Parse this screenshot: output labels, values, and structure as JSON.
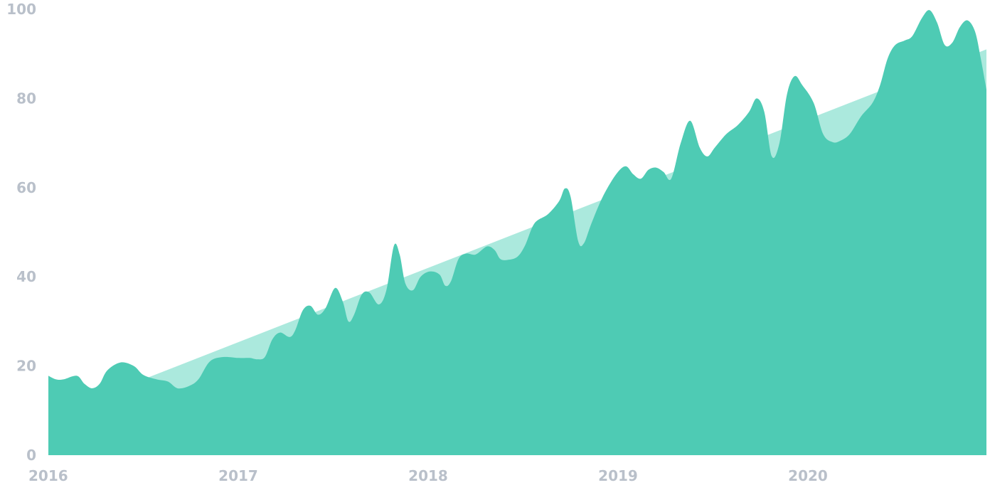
{
  "chart_data": {
    "type": "area",
    "title": "",
    "xlabel": "",
    "ylabel": "",
    "xlim": [
      2016,
      2020.94
    ],
    "ylim": [
      0,
      100
    ],
    "grid": false,
    "x_ticks": [
      "2016",
      "2017",
      "2018",
      "2019",
      "2020"
    ],
    "y_ticks": [
      "0",
      "20",
      "40",
      "60",
      "80",
      "100"
    ],
    "colors": {
      "actual": "#4ecbb4",
      "trend": "#abe9dd",
      "tick_label": "#b9c0ca"
    },
    "series": [
      {
        "key": "actual",
        "points": [
          [
            2016.0,
            17.8
          ],
          [
            2016.04,
            17.0
          ],
          [
            2016.08,
            17.0
          ],
          [
            2016.15,
            17.8
          ],
          [
            2016.19,
            16.0
          ],
          [
            2016.23,
            15.0
          ],
          [
            2016.27,
            16.0
          ],
          [
            2016.31,
            19.0
          ],
          [
            2016.38,
            20.8
          ],
          [
            2016.45,
            20.0
          ],
          [
            2016.5,
            18.0
          ],
          [
            2016.57,
            17.0
          ],
          [
            2016.63,
            16.5
          ],
          [
            2016.68,
            15.0
          ],
          [
            2016.74,
            15.5
          ],
          [
            2016.79,
            17.0
          ],
          [
            2016.85,
            21.0
          ],
          [
            2016.92,
            22.0
          ],
          [
            2017.0,
            21.8
          ],
          [
            2017.06,
            21.8
          ],
          [
            2017.1,
            21.5
          ],
          [
            2017.14,
            22.0
          ],
          [
            2017.18,
            26.0
          ],
          [
            2017.22,
            27.5
          ],
          [
            2017.27,
            26.5
          ],
          [
            2017.3,
            28.0
          ],
          [
            2017.34,
            32.5
          ],
          [
            2017.38,
            33.5
          ],
          [
            2017.42,
            31.5
          ],
          [
            2017.46,
            33.0
          ],
          [
            2017.51,
            37.5
          ],
          [
            2017.55,
            34.5
          ],
          [
            2017.58,
            30.0
          ],
          [
            2017.61,
            31.5
          ],
          [
            2017.65,
            36.0
          ],
          [
            2017.69,
            36.5
          ],
          [
            2017.74,
            33.8
          ],
          [
            2017.78,
            37.0
          ],
          [
            2017.82,
            47.0
          ],
          [
            2017.85,
            45.0
          ],
          [
            2017.88,
            38.5
          ],
          [
            2017.92,
            37.0
          ],
          [
            2017.96,
            40.0
          ],
          [
            2018.01,
            41.2
          ],
          [
            2018.06,
            40.5
          ],
          [
            2018.09,
            38.0
          ],
          [
            2018.12,
            39.0
          ],
          [
            2018.16,
            44.0
          ],
          [
            2018.2,
            45.2
          ],
          [
            2018.25,
            45.0
          ],
          [
            2018.31,
            46.8
          ],
          [
            2018.35,
            46.0
          ],
          [
            2018.38,
            44.0
          ],
          [
            2018.42,
            43.8
          ],
          [
            2018.47,
            44.5
          ],
          [
            2018.51,
            47.0
          ],
          [
            2018.56,
            52.0
          ],
          [
            2018.63,
            54.0
          ],
          [
            2018.69,
            57.0
          ],
          [
            2018.72,
            59.8
          ],
          [
            2018.75,
            58.0
          ],
          [
            2018.79,
            48.0
          ],
          [
            2018.82,
            47.5
          ],
          [
            2018.86,
            52.0
          ],
          [
            2018.92,
            58.0
          ],
          [
            2018.99,
            63.0
          ],
          [
            2019.04,
            64.8
          ],
          [
            2019.08,
            63.0
          ],
          [
            2019.12,
            62.0
          ],
          [
            2019.16,
            64.0
          ],
          [
            2019.2,
            64.5
          ],
          [
            2019.24,
            63.5
          ],
          [
            2019.28,
            62.0
          ],
          [
            2019.33,
            70.0
          ],
          [
            2019.38,
            75.0
          ],
          [
            2019.43,
            69.0
          ],
          [
            2019.47,
            67.0
          ],
          [
            2019.51,
            69.0
          ],
          [
            2019.57,
            72.0
          ],
          [
            2019.63,
            74.0
          ],
          [
            2019.69,
            77.0
          ],
          [
            2019.73,
            80.0
          ],
          [
            2019.77,
            77.0
          ],
          [
            2019.81,
            67.0
          ],
          [
            2019.85,
            70.0
          ],
          [
            2019.89,
            81.0
          ],
          [
            2019.93,
            85.0
          ],
          [
            2019.97,
            83.0
          ],
          [
            2020.03,
            79.0
          ],
          [
            2020.08,
            72.0
          ],
          [
            2020.13,
            70.2
          ],
          [
            2020.17,
            70.5
          ],
          [
            2020.22,
            72.0
          ],
          [
            2020.28,
            76.0
          ],
          [
            2020.34,
            79.0
          ],
          [
            2020.38,
            83.0
          ],
          [
            2020.42,
            89.0
          ],
          [
            2020.46,
            92.0
          ],
          [
            2020.51,
            93.0
          ],
          [
            2020.55,
            94.0
          ],
          [
            2020.6,
            98.0
          ],
          [
            2020.64,
            99.8
          ],
          [
            2020.68,
            97.0
          ],
          [
            2020.72,
            92.0
          ],
          [
            2020.76,
            92.5
          ],
          [
            2020.8,
            96.0
          ],
          [
            2020.84,
            97.5
          ],
          [
            2020.88,
            95.0
          ],
          [
            2020.91,
            89.0
          ],
          [
            2020.94,
            82.0
          ]
        ]
      },
      {
        "key": "trend",
        "points": [
          [
            2016.5,
            17.0
          ],
          [
            2020.94,
            91.0
          ]
        ]
      }
    ]
  }
}
